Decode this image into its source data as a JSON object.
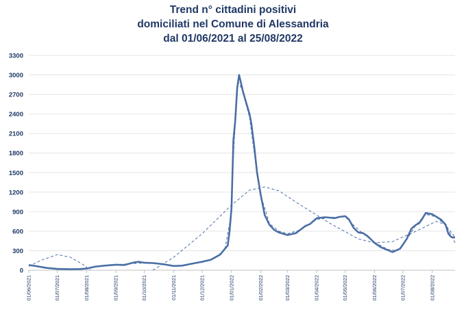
{
  "chart_data": {
    "type": "line",
    "title_lines": [
      "Trend n° cittadini positivi",
      "domiciliati nel Comune di Alessandria",
      "dal 01/06/2021 al 25/08/2022"
    ],
    "xlabel": "",
    "ylabel": "",
    "ylim": [
      0,
      3300
    ],
    "y_ticks": [
      "0",
      "300",
      "600",
      "900",
      "1200",
      "1500",
      "1800",
      "2100",
      "2400",
      "2700",
      "3000",
      "3300"
    ],
    "x_ticks": [
      "01/06/2021",
      "01/07/2021",
      "01/08/2021",
      "01/09/2021",
      "01/10/2021",
      "01/11/2021",
      "01/12/2021",
      "01/01/2022",
      "01/02/2022",
      "01/03/2022",
      "01/04/2022",
      "01/05/2022",
      "01/06/2022",
      "01/07/2022",
      "01/08/2022"
    ],
    "x_range": [
      "2021-06-01",
      "2022-08-25"
    ],
    "grid": "horizontal",
    "legend": "none",
    "series": [
      {
        "style": "solid",
        "color": "#4a6fa5",
        "points": [
          [
            "2021-06-01",
            80
          ],
          [
            "2021-06-10",
            60
          ],
          [
            "2021-06-20",
            35
          ],
          [
            "2021-07-01",
            20
          ],
          [
            "2021-07-15",
            15
          ],
          [
            "2021-07-25",
            18
          ],
          [
            "2021-08-01",
            25
          ],
          [
            "2021-08-10",
            55
          ],
          [
            "2021-08-20",
            70
          ],
          [
            "2021-09-01",
            85
          ],
          [
            "2021-09-10",
            80
          ],
          [
            "2021-09-20",
            120
          ],
          [
            "2021-09-25",
            130
          ],
          [
            "2021-10-01",
            115
          ],
          [
            "2021-10-10",
            110
          ],
          [
            "2021-10-20",
            95
          ],
          [
            "2021-11-01",
            65
          ],
          [
            "2021-11-10",
            70
          ],
          [
            "2021-11-20",
            100
          ],
          [
            "2021-12-01",
            130
          ],
          [
            "2021-12-10",
            160
          ],
          [
            "2021-12-20",
            240
          ],
          [
            "2021-12-28",
            380
          ],
          [
            "2021-12-30",
            600
          ],
          [
            "2022-01-01",
            950
          ],
          [
            "2022-01-03",
            2000
          ],
          [
            "2022-01-05",
            2300
          ],
          [
            "2022-01-07",
            2800
          ],
          [
            "2022-01-09",
            3000
          ],
          [
            "2022-01-11",
            2880
          ],
          [
            "2022-01-13",
            2750
          ],
          [
            "2022-01-15",
            2650
          ],
          [
            "2022-01-18",
            2500
          ],
          [
            "2022-01-20",
            2400
          ],
          [
            "2022-01-22",
            2250
          ],
          [
            "2022-01-25",
            1900
          ],
          [
            "2022-01-28",
            1500
          ],
          [
            "2022-02-01",
            1150
          ],
          [
            "2022-02-05",
            850
          ],
          [
            "2022-02-10",
            700
          ],
          [
            "2022-02-15",
            620
          ],
          [
            "2022-02-20",
            580
          ],
          [
            "2022-03-01",
            540
          ],
          [
            "2022-03-10",
            570
          ],
          [
            "2022-03-20",
            680
          ],
          [
            "2022-03-25",
            710
          ],
          [
            "2022-04-01",
            800
          ],
          [
            "2022-04-10",
            815
          ],
          [
            "2022-04-20",
            800
          ],
          [
            "2022-04-25",
            820
          ],
          [
            "2022-05-01",
            830
          ],
          [
            "2022-05-05",
            780
          ],
          [
            "2022-05-10",
            650
          ],
          [
            "2022-05-15",
            580
          ],
          [
            "2022-05-20",
            570
          ],
          [
            "2022-05-25",
            520
          ],
          [
            "2022-06-01",
            420
          ],
          [
            "2022-06-08",
            350
          ],
          [
            "2022-06-15",
            310
          ],
          [
            "2022-06-20",
            280
          ],
          [
            "2022-06-28",
            330
          ],
          [
            "2022-07-05",
            480
          ],
          [
            "2022-07-10",
            640
          ],
          [
            "2022-07-15",
            700
          ],
          [
            "2022-07-18",
            720
          ],
          [
            "2022-07-21",
            780
          ],
          [
            "2022-07-25",
            880
          ],
          [
            "2022-08-01",
            860
          ],
          [
            "2022-08-10",
            780
          ],
          [
            "2022-08-15",
            700
          ],
          [
            "2022-08-18",
            560
          ],
          [
            "2022-08-21",
            510
          ],
          [
            "2022-08-25",
            500
          ]
        ]
      },
      {
        "style": "dashed",
        "color": "#4a6fa5",
        "points": [
          [
            "2021-06-01",
            70
          ],
          [
            "2021-06-15",
            50
          ],
          [
            "2021-07-01",
            20
          ],
          [
            "2021-07-15",
            15
          ],
          [
            "2021-08-01",
            30
          ],
          [
            "2021-08-15",
            60
          ],
          [
            "2021-09-01",
            85
          ],
          [
            "2021-09-15",
            100
          ],
          [
            "2021-10-01",
            110
          ],
          [
            "2021-10-15",
            95
          ],
          [
            "2021-11-01",
            70
          ],
          [
            "2021-11-15",
            80
          ],
          [
            "2021-12-01",
            120
          ],
          [
            "2021-12-15",
            190
          ],
          [
            "2021-12-25",
            320
          ],
          [
            "2021-12-31",
            800
          ],
          [
            "2022-01-04",
            2000
          ],
          [
            "2022-01-08",
            2900
          ],
          [
            "2022-01-12",
            2780
          ],
          [
            "2022-01-20",
            2350
          ],
          [
            "2022-01-25",
            1800
          ],
          [
            "2022-02-01",
            1150
          ],
          [
            "2022-02-10",
            720
          ],
          [
            "2022-02-20",
            600
          ],
          [
            "2022-03-01",
            560
          ],
          [
            "2022-03-15",
            620
          ],
          [
            "2022-04-01",
            780
          ],
          [
            "2022-04-15",
            810
          ],
          [
            "2022-05-01",
            820
          ],
          [
            "2022-05-10",
            690
          ],
          [
            "2022-05-20",
            560
          ],
          [
            "2022-06-01",
            430
          ],
          [
            "2022-06-15",
            320
          ],
          [
            "2022-06-25",
            300
          ],
          [
            "2022-07-05",
            470
          ],
          [
            "2022-07-15",
            700
          ],
          [
            "2022-07-25",
            860
          ],
          [
            "2022-08-05",
            820
          ],
          [
            "2022-08-15",
            690
          ],
          [
            "2022-08-25",
            510
          ]
        ]
      },
      {
        "style": "dashed",
        "color": "#4a6fa5",
        "points": [
          [
            "2021-06-01",
            60
          ],
          [
            "2021-06-15",
            160
          ],
          [
            "2021-07-01",
            240
          ],
          [
            "2021-07-15",
            200
          ],
          [
            "2021-07-28",
            90
          ],
          [
            "2021-08-05",
            0
          ]
        ]
      },
      {
        "style": "dashed",
        "color": "#4a6fa5",
        "points": [
          [
            "2021-10-10",
            0
          ],
          [
            "2021-11-01",
            200
          ],
          [
            "2021-12-01",
            560
          ],
          [
            "2022-01-01",
            1000
          ],
          [
            "2022-01-20",
            1230
          ],
          [
            "2022-02-05",
            1280
          ],
          [
            "2022-02-20",
            1220
          ],
          [
            "2022-03-15",
            1000
          ],
          [
            "2022-04-15",
            720
          ],
          [
            "2022-05-15",
            480
          ],
          [
            "2022-06-01",
            420
          ],
          [
            "2022-06-20",
            440
          ],
          [
            "2022-07-15",
            600
          ],
          [
            "2022-08-05",
            750
          ],
          [
            "2022-08-15",
            700
          ],
          [
            "2022-08-25",
            420
          ]
        ]
      }
    ]
  }
}
